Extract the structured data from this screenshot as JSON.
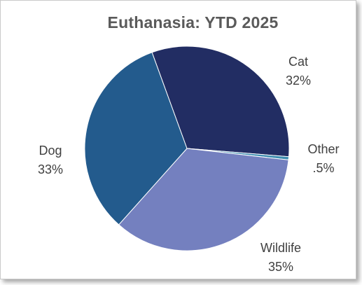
{
  "chart_data": {
    "type": "pie",
    "title": "Euthanasia: YTD 2025",
    "slices": [
      {
        "label": "Cat",
        "value": 32,
        "value_label": "32%",
        "color": "#222d63"
      },
      {
        "label": "Other",
        "value": 0.5,
        "value_label": ".5%",
        "color": "#3e8db0"
      },
      {
        "label": "Wildlife",
        "value": 35,
        "value_label": "35%",
        "color": "#7480bf"
      },
      {
        "label": "Dog",
        "value": 33,
        "value_label": "33%",
        "color": "#235b8d"
      }
    ]
  }
}
